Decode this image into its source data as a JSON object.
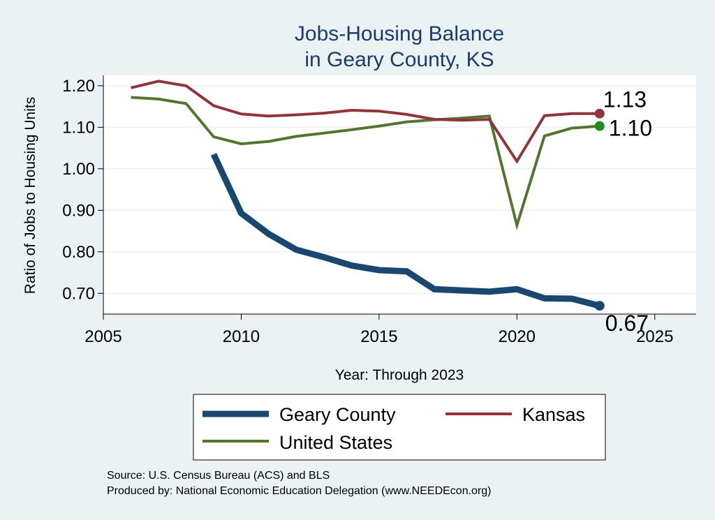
{
  "chart_data": {
    "type": "line",
    "title": [
      "Jobs-Housing Balance",
      "in Geary County, KS"
    ],
    "xlabel": "Year: Through 2023",
    "ylabel": "Ratio of Jobs to Housing Units",
    "xlim": [
      2005,
      2026.5
    ],
    "ylim": [
      0.65,
      1.225
    ],
    "xticks": [
      2005,
      2010,
      2015,
      2020,
      2025
    ],
    "yticks": [
      0.7,
      0.8,
      0.9,
      1.0,
      1.1,
      1.2
    ],
    "ytick_labels": [
      "0.70",
      "0.80",
      "0.90",
      "1.00",
      "1.10",
      "1.20"
    ],
    "grid": true,
    "series": [
      {
        "name": "Geary County",
        "color": "#1a476f",
        "width": 9,
        "x": [
          2009,
          2010,
          2011,
          2012,
          2013,
          2014,
          2015,
          2016,
          2017,
          2018,
          2019,
          2020,
          2021,
          2022,
          2023
        ],
        "values": [
          1.035,
          0.893,
          0.843,
          0.805,
          0.787,
          0.767,
          0.756,
          0.753,
          0.71,
          0.707,
          0.704,
          0.71,
          0.688,
          0.687,
          0.67
        ],
        "end_label": "0.67",
        "marker_color": "#1a476f"
      },
      {
        "name": "Kansas",
        "color": "#90353b",
        "width": 4,
        "x": [
          2006,
          2007,
          2008,
          2009,
          2010,
          2011,
          2012,
          2013,
          2014,
          2015,
          2016,
          2017,
          2018,
          2019,
          2020,
          2021,
          2022,
          2023
        ],
        "values": [
          1.195,
          1.211,
          1.2,
          1.152,
          1.132,
          1.127,
          1.13,
          1.134,
          1.141,
          1.139,
          1.131,
          1.119,
          1.117,
          1.119,
          1.018,
          1.128,
          1.133,
          1.133
        ],
        "end_label": "1.13",
        "marker_color": "#90353b"
      },
      {
        "name": "United States",
        "color": "#55752f",
        "width": 4,
        "x": [
          2006,
          2007,
          2008,
          2009,
          2010,
          2011,
          2012,
          2013,
          2014,
          2015,
          2016,
          2017,
          2018,
          2019,
          2020,
          2021,
          2022,
          2023
        ],
        "values": [
          1.172,
          1.168,
          1.157,
          1.077,
          1.06,
          1.066,
          1.078,
          1.086,
          1.094,
          1.103,
          1.113,
          1.118,
          1.122,
          1.127,
          0.864,
          1.079,
          1.098,
          1.103
        ],
        "end_label": "1.10",
        "marker_color": "#1e8c1e"
      }
    ],
    "legend": {
      "placement": "bottom",
      "order": [
        "Geary County",
        "Kansas",
        "United States"
      ]
    },
    "notes": [
      "Source: U.S. Census Bureau (ACS) and BLS",
      "Produced by: National Economic Education Delegation (www.NEEDEcon.org)"
    ]
  }
}
